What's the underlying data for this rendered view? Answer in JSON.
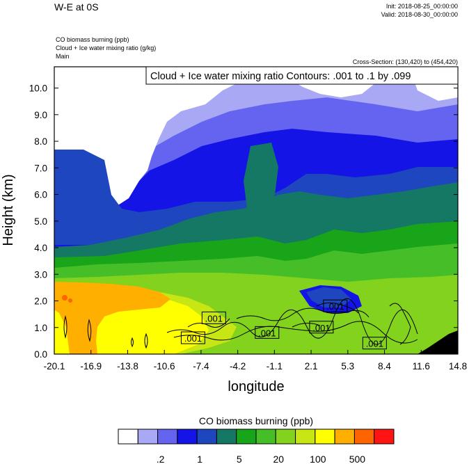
{
  "header": {
    "title": "W-E at 0S",
    "init": "Init: 2018-08-25_00:00:00",
    "valid": "Valid: 2018-08-30_00:00:00",
    "fields": [
      "CO biomass burning   (ppb)",
      "Cloud + Ice water mixing ratio   (g/kg)",
      "Main"
    ],
    "cross_section": "Cross-Section: (130,420) to (454,420)"
  },
  "contour_label": "Cloud + Ice water mixing ratio Contours: .001 to .1 by .099",
  "colorbar": {
    "title": "CO biomass burning  (ppb)",
    "colors": [
      "#ffffff",
      "#a8a8f5",
      "#6464f0",
      "#1414e6",
      "#1e46be",
      "#147864",
      "#19a519",
      "#46be28",
      "#82d21e",
      "#c8e614",
      "#ffff00",
      "#ffaf00",
      "#ff6400",
      "#ff1414"
    ],
    "labels": [
      ".2",
      "1",
      "5",
      "20",
      "100",
      "500"
    ]
  },
  "chart_data": {
    "type": "heatmap",
    "xlabel": "longitude",
    "ylabel": "Height (km)",
    "xticks": [
      "-20.1",
      "-16.9",
      "-13.8",
      "-10.6",
      "-7.4",
      "-4.2",
      "-1.1",
      "2.1",
      "5.3",
      "8.4",
      "11.6",
      "14.8"
    ],
    "xlim": [
      -20.1,
      14.8
    ],
    "yticks": [
      "0.0",
      "1.0",
      "2.0",
      "3.0",
      "4.0",
      "5.0",
      "6.0",
      "7.0",
      "8.0",
      "9.0",
      "10.0"
    ],
    "ylim": [
      0.0,
      10.8
    ],
    "contour_value_labels": [
      {
        "text": ".001",
        "x": -6.3,
        "y": 1.35
      },
      {
        "text": ".001",
        "x": -8.1,
        "y": 0.6
      },
      {
        "text": ".001",
        "x": -1.7,
        "y": 0.8
      },
      {
        "text": ".001",
        "x": 3.0,
        "y": 1.0
      },
      {
        "text": ".001",
        "x": 4.2,
        "y": 1.8
      },
      {
        "text": ".001",
        "x": 7.6,
        "y": 0.4
      }
    ]
  }
}
